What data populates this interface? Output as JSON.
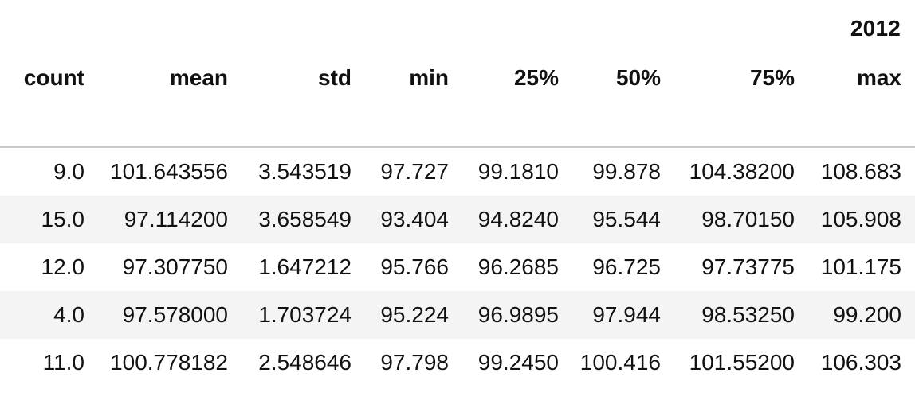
{
  "table": {
    "super_header": "2012",
    "columns": [
      "count",
      "mean",
      "std",
      "min",
      "25%",
      "50%",
      "75%",
      "max"
    ],
    "rows": [
      [
        "9.0",
        "101.643556",
        "3.543519",
        "97.727",
        "99.1810",
        "99.878",
        "104.38200",
        "108.683"
      ],
      [
        "15.0",
        "97.114200",
        "3.658549",
        "93.404",
        "94.8240",
        "95.544",
        "98.70150",
        "105.908"
      ],
      [
        "12.0",
        "97.307750",
        "1.647212",
        "95.766",
        "96.2685",
        "96.725",
        "97.73775",
        "101.175"
      ],
      [
        "4.0",
        "97.578000",
        "1.703724",
        "95.224",
        "96.9895",
        "97.944",
        "98.53250",
        "99.200"
      ],
      [
        "11.0",
        "100.778182",
        "2.548646",
        "97.798",
        "99.2450",
        "100.416",
        "101.55200",
        "106.303"
      ]
    ]
  }
}
